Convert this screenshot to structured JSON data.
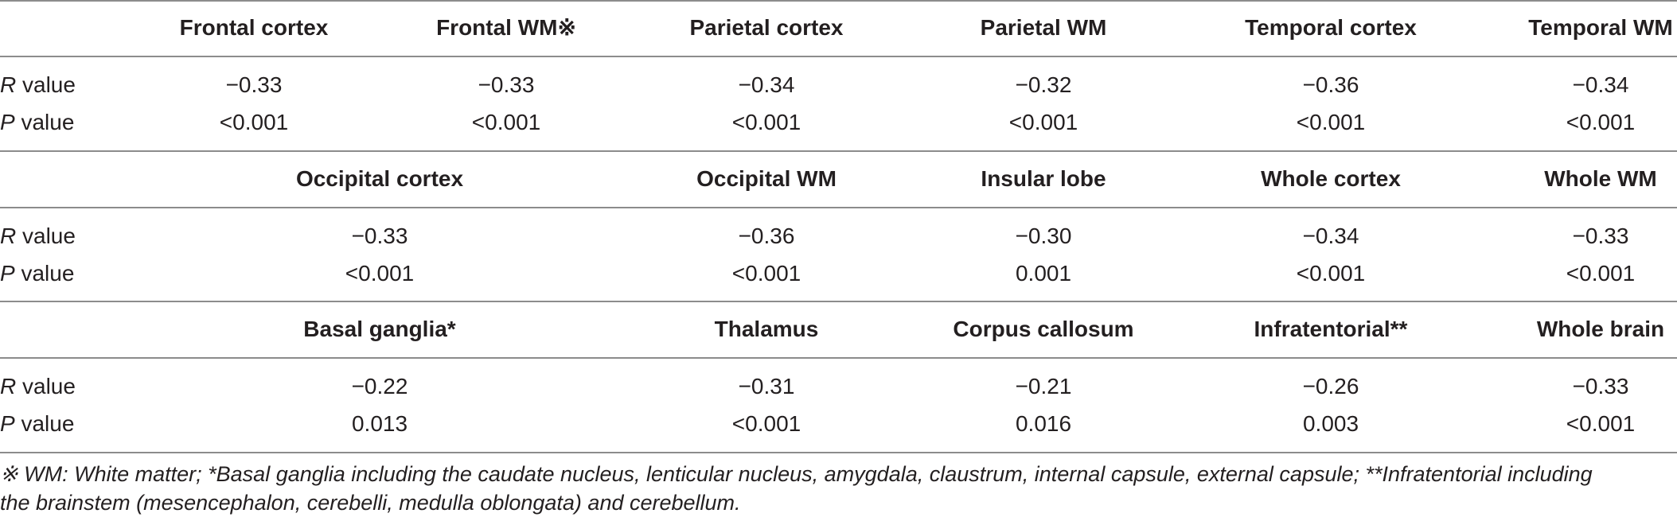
{
  "row_labels": {
    "r_letter": "R",
    "p_letter": "P",
    "suffix": " value"
  },
  "blocks": [
    {
      "headers": [
        "Frontal cortex",
        "Frontal WM※",
        "Parietal cortex",
        "Parietal WM",
        "Temporal cortex",
        "Temporal WM"
      ],
      "r_values": [
        "−0.33",
        "−0.33",
        "−0.34",
        "−0.32",
        "−0.36",
        "−0.34"
      ],
      "p_values": [
        "<0.001",
        "<0.001",
        "<0.001",
        "<0.001",
        "<0.001",
        "<0.001"
      ]
    },
    {
      "headers": [
        "Occipital cortex",
        "Occipital WM",
        "Insular lobe",
        "Whole cortex",
        "Whole WM"
      ],
      "r_values": [
        "−0.33",
        "−0.36",
        "−0.30",
        "−0.34",
        "−0.33"
      ],
      "p_values": [
        "<0.001",
        "<0.001",
        "0.001",
        "<0.001",
        "<0.001"
      ]
    },
    {
      "headers": [
        "Basal ganglia*",
        "Thalamus",
        "Corpus callosum",
        "Infratentorial**",
        "Whole brain"
      ],
      "r_values": [
        "−0.22",
        "−0.31",
        "−0.21",
        "−0.26",
        "−0.33"
      ],
      "p_values": [
        "0.013",
        "<0.001",
        "0.016",
        "0.003",
        "<0.001"
      ]
    }
  ],
  "footnote": {
    "line1": "※ WM: White matter; *Basal ganglia including the caudate nucleus, lenticular nucleus, amygdala, claustrum, internal capsule, external capsule; **Infratentorial including",
    "line2": "the brainstem (mesencephalon, cerebelli, medulla oblongata) and cerebellum."
  }
}
